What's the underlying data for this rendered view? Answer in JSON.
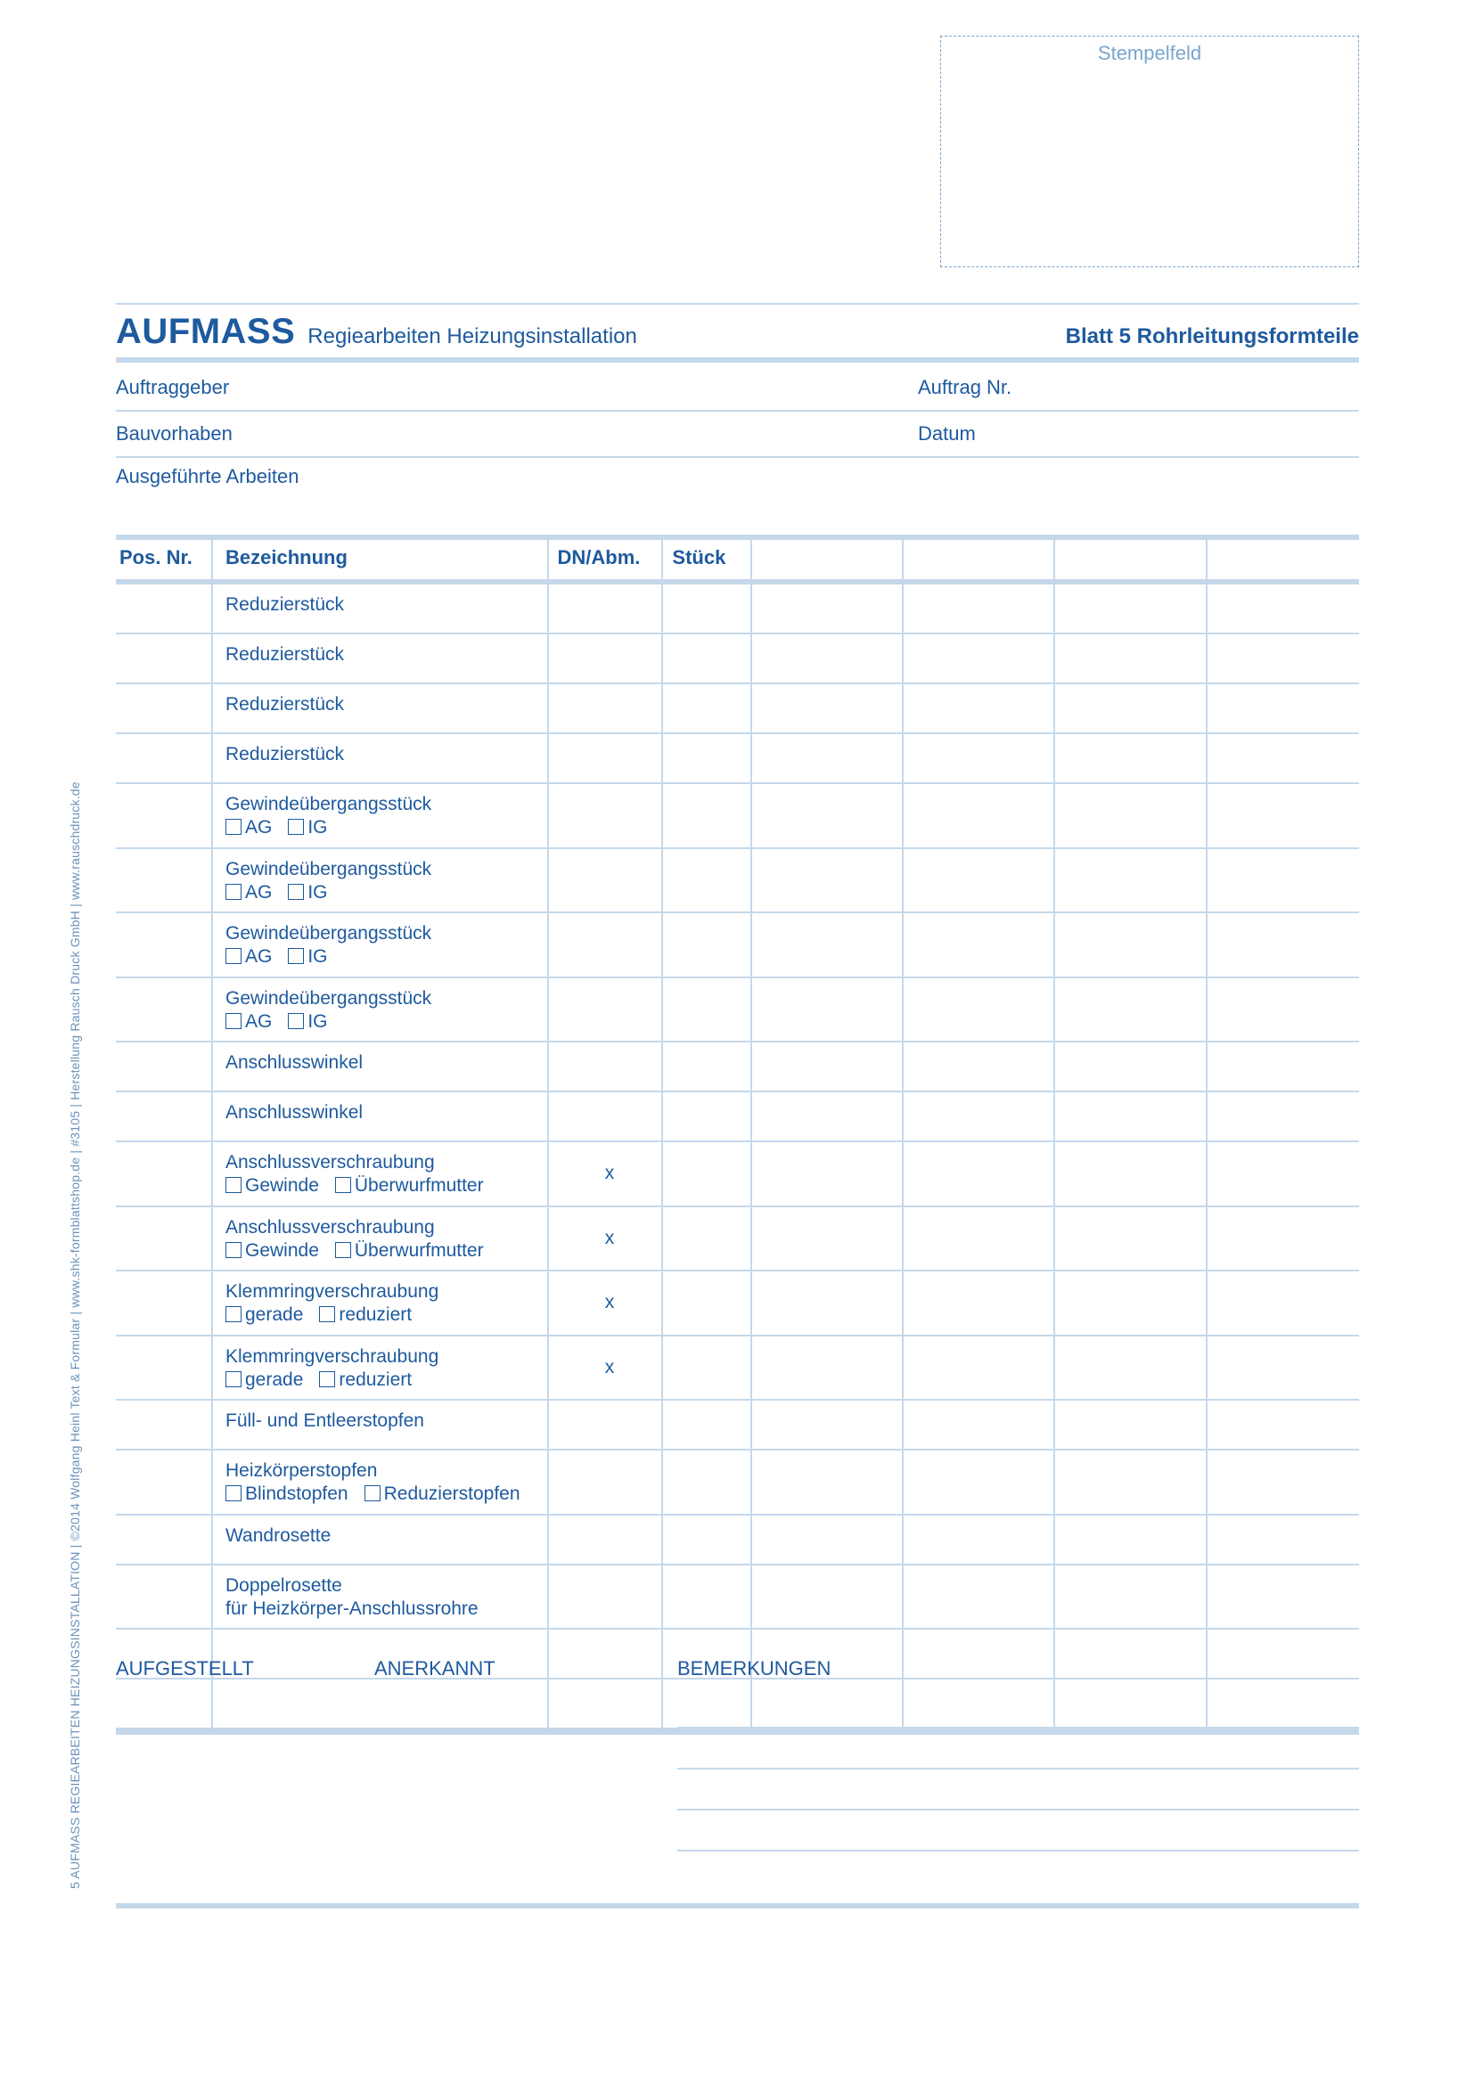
{
  "stempel_label": "Stempelfeld",
  "title": {
    "main": "AUFMASS",
    "sub": "Regiearbeiten Heizungsinstallation",
    "right": "Blatt 5 Rohrleitungsformteile"
  },
  "meta": {
    "auftraggeber": "Auftraggeber",
    "auftrag_nr": "Auftrag Nr.",
    "bauvorhaben": "Bauvorhaben",
    "datum": "Datum",
    "ausgefuehrte": "Ausgeführte Arbeiten"
  },
  "cols": {
    "pos": "Pos. Nr.",
    "bez": "Bezeichnung",
    "dn": "DN/Abm.",
    "stueck": "Stück"
  },
  "cb_labels": {
    "ag": "AG",
    "ig": "IG",
    "gewinde": "Gewinde",
    "ueberwurf": "Überwurfmutter",
    "gerade": "gerade",
    "reduziert": "reduziert",
    "blind": "Blindstopfen",
    "reduzierst": "Reduzierstopfen"
  },
  "rows": [
    {
      "label": "Reduzierstück",
      "dn": "",
      "cb": null
    },
    {
      "label": "Reduzierstück",
      "dn": "",
      "cb": null
    },
    {
      "label": "Reduzierstück",
      "dn": "",
      "cb": null
    },
    {
      "label": "Reduzierstück",
      "dn": "",
      "cb": null
    },
    {
      "label": "Gewindeübergangsstück",
      "dn": "",
      "cb": "agig"
    },
    {
      "label": "Gewindeübergangsstück",
      "dn": "",
      "cb": "agig"
    },
    {
      "label": "Gewindeübergangsstück",
      "dn": "",
      "cb": "agig"
    },
    {
      "label": "Gewindeübergangsstück",
      "dn": "",
      "cb": "agig"
    },
    {
      "label": "Anschlusswinkel",
      "dn": "",
      "cb": null
    },
    {
      "label": "Anschlusswinkel",
      "dn": "",
      "cb": null
    },
    {
      "label": "Anschlussverschraubung",
      "dn": "x",
      "cb": "gew"
    },
    {
      "label": "Anschlussverschraubung",
      "dn": "x",
      "cb": "gew"
    },
    {
      "label": "Klemmringverschraubung",
      "dn": "x",
      "cb": "ger"
    },
    {
      "label": "Klemmringverschraubung",
      "dn": "x",
      "cb": "ger"
    },
    {
      "label": "Füll- und Entleerstopfen",
      "dn": "",
      "cb": null
    },
    {
      "label": "Heizkörperstopfen",
      "dn": "",
      "cb": "blind"
    },
    {
      "label": "Wandrosette",
      "dn": "",
      "cb": null
    },
    {
      "label": "Doppelrosette\nfür Heizkörper-Anschlussrohre",
      "dn": "",
      "cb": null
    },
    {
      "label": "",
      "dn": "",
      "cb": null
    },
    {
      "label": "",
      "dn": "",
      "cb": null
    }
  ],
  "footer": {
    "aufgestellt": "AUFGESTELLT",
    "anerkannt": "ANERKANNT",
    "bemerk": "BEMERKUNGEN"
  },
  "side": "5 AUFMASS REGIEARBEITEN HEIZUNGSINSTALLATION | ©2014 Wolfgang Heinl Text & Formular | www.shk-formblattshop.de | #3105 | Herstellung Rausch Druck GmbH | www.rauschdruck.de"
}
